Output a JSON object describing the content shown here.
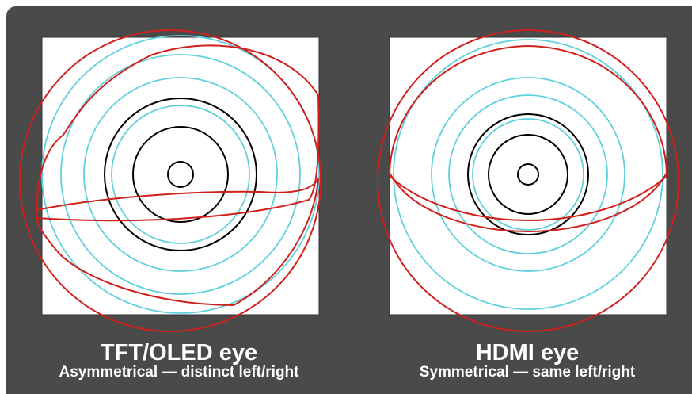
{
  "eyes": [
    {
      "title": "TFT/OLED eye",
      "subtitle": "Asymmetrical — distinct left/right"
    },
    {
      "title": "HDMI eye",
      "subtitle": "Symmetrical — same left/right"
    }
  ],
  "colors": {
    "background_panel": "#4a4a4a",
    "eye_square": "#ffffff",
    "outline_black": "#000000",
    "ring_cyan": "#5fd0dc",
    "eyelid_red": "#d0201c",
    "caption_text": "#ffffff"
  }
}
